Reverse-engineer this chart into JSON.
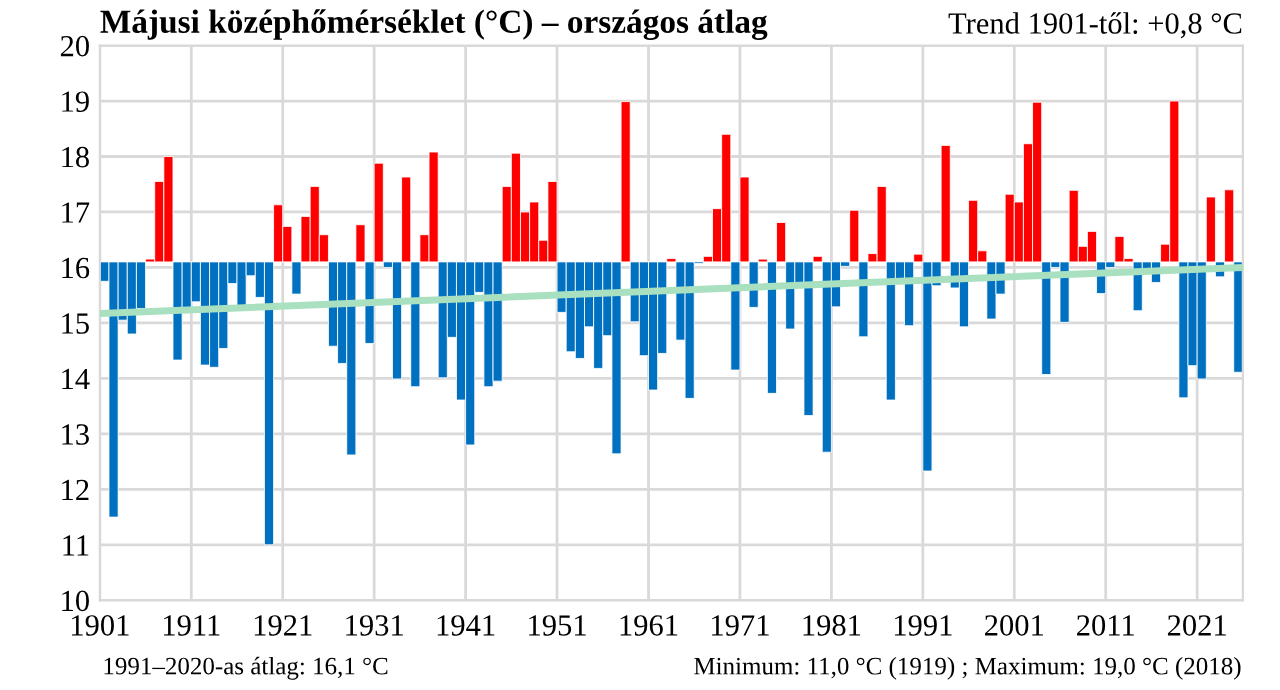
{
  "chart_data": {
    "type": "bar",
    "title": "Májusi középhőmérséklet (°C) – országos átlag",
    "subtitle": "Trend 1901-től: +0,8 °C",
    "annotations": [
      "1991–2020-as átlag: 16,1 °C",
      "Minimum: 11,0 °C (1919) ; Maximum: 19,0 °C (2018)"
    ],
    "x": [
      1901,
      1902,
      1903,
      1904,
      1905,
      1906,
      1907,
      1908,
      1909,
      1910,
      1911,
      1912,
      1913,
      1914,
      1915,
      1916,
      1917,
      1918,
      1919,
      1920,
      1921,
      1922,
      1923,
      1924,
      1925,
      1926,
      1927,
      1928,
      1929,
      1930,
      1931,
      1932,
      1933,
      1934,
      1935,
      1936,
      1937,
      1938,
      1939,
      1940,
      1941,
      1942,
      1943,
      1944,
      1945,
      1946,
      1947,
      1948,
      1949,
      1950,
      1951,
      1952,
      1953,
      1954,
      1955,
      1956,
      1957,
      1958,
      1959,
      1960,
      1961,
      1962,
      1963,
      1964,
      1965,
      1966,
      1967,
      1968,
      1969,
      1970,
      1971,
      1972,
      1973,
      1974,
      1975,
      1976,
      1977,
      1978,
      1979,
      1980,
      1981,
      1982,
      1983,
      1984,
      1985,
      1986,
      1987,
      1988,
      1989,
      1990,
      1991,
      1992,
      1993,
      1994,
      1995,
      1996,
      1997,
      1998,
      1999,
      2000,
      2001,
      2002,
      2003,
      2004,
      2005,
      2006,
      2007,
      2008,
      2009,
      2010,
      2011,
      2012,
      2013,
      2014,
      2015,
      2016,
      2017,
      2018,
      2019,
      2020,
      2021,
      2022,
      2023,
      2024,
      2025
    ],
    "series": [
      {
        "values": [
          -0.35,
          -4.6,
          -1.05,
          -1.3,
          -0.84,
          0.05,
          1.45,
          1.9,
          -1.77,
          -0.85,
          -0.72,
          -1.86,
          -1.9,
          -1.56,
          -0.39,
          -0.79,
          -0.25,
          -0.64,
          -5.1,
          1.03,
          0.64,
          -0.58,
          0.82,
          1.36,
          0.49,
          -1.52,
          -1.83,
          -3.48,
          0.67,
          -1.47,
          1.78,
          -0.1,
          -2.11,
          1.53,
          -2.25,
          0.49,
          1.98,
          -2.09,
          -1.36,
          -2.49,
          -3.3,
          -0.55,
          -2.25,
          -2.15,
          1.36,
          1.96,
          0.9,
          1.08,
          0.39,
          1.45,
          -0.91,
          -1.62,
          -1.74,
          -1.17,
          -1.92,
          -1.33,
          -3.46,
          2.89,
          -1.08,
          -1.69,
          -2.31,
          -1.65,
          0.06,
          -1.41,
          -2.46,
          -0.03,
          0.1,
          0.96,
          2.3,
          -1.95,
          1.53,
          -0.82,
          0.05,
          -2.37,
          0.71,
          -1.21,
          -0.43,
          -2.77,
          0.1,
          -3.43,
          -0.81,
          -0.08,
          0.93,
          -1.35,
          0.15,
          1.36,
          -2.49,
          -0.31,
          -1.15,
          0.14,
          -3.77,
          -0.43,
          2.1,
          -0.47,
          -1.17,
          1.11,
          0.2,
          -1.03,
          -0.58,
          1.22,
          1.08,
          2.13,
          2.88,
          -2.03,
          -0.1,
          -1.09,
          1.29,
          0.28,
          0.55,
          -0.57,
          -0.1,
          0.46,
          0.06,
          -0.88,
          -0.18,
          -0.37,
          0.32,
          2.9,
          -2.45,
          -1.87,
          -2.11,
          1.17,
          -0.27,
          1.3,
          -1.99
        ],
        "base": [
          16.1,
          16.1,
          16.1,
          16.1,
          16.1,
          16.1,
          16.1,
          16.1,
          16.1,
          16.1,
          16.1,
          16.1,
          16.1,
          16.1,
          16.1,
          16.1,
          16.1,
          16.1,
          16.1,
          16.1,
          16.1,
          16.1,
          16.1,
          16.1,
          16.1,
          16.1,
          16.1,
          16.1,
          16.1,
          16.1,
          16.1,
          16.1,
          16.1,
          16.1,
          16.1,
          16.1,
          16.1,
          16.1,
          16.1,
          16.1,
          16.1,
          16.1,
          16.1,
          16.1,
          16.1,
          16.1,
          16.1,
          16.1,
          16.1,
          16.1,
          16.1,
          16.1,
          16.1,
          16.1,
          16.1,
          16.1,
          16.1,
          16.1,
          16.1,
          16.1,
          16.1,
          16.1,
          16.1,
          16.1,
          16.1,
          16.1,
          16.1,
          16.1,
          16.1,
          16.1,
          16.1,
          16.1,
          16.1,
          16.1,
          16.1,
          16.1,
          16.1,
          16.1,
          16.1,
          16.1,
          16.1,
          16.1,
          16.1,
          16.1,
          16.1,
          16.1,
          16.1,
          16.1,
          16.1,
          16.1,
          16.1,
          16.1,
          16.1,
          16.1,
          16.1,
          16.1,
          16.1,
          16.1,
          16.1,
          16.1,
          16.1,
          16.1,
          16.1,
          16.1,
          16.1,
          16.1,
          16.1,
          16.1,
          16.1,
          16.1,
          16.1,
          16.1,
          16.1,
          16.1,
          16.1,
          16.1,
          16.1,
          16.1,
          16.1,
          16.1,
          16.1,
          16.1,
          16.1,
          16.1,
          16.1
        ],
        "colors": [
          "#0070c0",
          "#0070c0",
          "#0070c0",
          "#0070c0",
          "#0070c0",
          "#ff0000",
          "#ff0000",
          "#ff0000",
          "#0070c0",
          "#0070c0",
          "#0070c0",
          "#0070c0",
          "#0070c0",
          "#0070c0",
          "#0070c0",
          "#0070c0",
          "#0070c0",
          "#0070c0",
          "#0070c0",
          "#ff0000",
          "#ff0000",
          "#0070c0",
          "#ff0000",
          "#ff0000",
          "#ff0000",
          "#0070c0",
          "#0070c0",
          "#0070c0",
          "#ff0000",
          "#0070c0",
          "#ff0000",
          "#0070c0",
          "#0070c0",
          "#ff0000",
          "#0070c0",
          "#ff0000",
          "#ff0000",
          "#0070c0",
          "#0070c0",
          "#0070c0",
          "#0070c0",
          "#0070c0",
          "#0070c0",
          "#0070c0",
          "#ff0000",
          "#ff0000",
          "#ff0000",
          "#ff0000",
          "#ff0000",
          "#ff0000",
          "#0070c0",
          "#0070c0",
          "#0070c0",
          "#0070c0",
          "#0070c0",
          "#0070c0",
          "#0070c0",
          "#ff0000",
          "#0070c0",
          "#0070c0",
          "#0070c0",
          "#0070c0",
          "#ff0000",
          "#0070c0",
          "#0070c0",
          "#0070c0",
          "#ff0000",
          "#ff0000",
          "#ff0000",
          "#0070c0",
          "#ff0000",
          "#0070c0",
          "#ff0000",
          "#0070c0",
          "#ff0000",
          "#0070c0",
          "#0070c0",
          "#0070c0",
          "#ff0000",
          "#0070c0",
          "#0070c0",
          "#0070c0",
          "#ff0000",
          "#0070c0",
          "#ff0000",
          "#ff0000",
          "#0070c0",
          "#0070c0",
          "#0070c0",
          "#ff0000",
          "#0070c0",
          "#0070c0",
          "#ff0000",
          "#0070c0",
          "#0070c0",
          "#ff0000",
          "#ff0000",
          "#0070c0",
          "#0070c0",
          "#ff0000",
          "#ff0000",
          "#ff0000",
          "#ff0000",
          "#0070c0",
          "#0070c0",
          "#0070c0",
          "#ff0000",
          "#ff0000",
          "#ff0000",
          "#0070c0",
          "#0070c0",
          "#ff0000",
          "#ff0000",
          "#0070c0",
          "#0070c0",
          "#0070c0",
          "#ff0000",
          "#ff0000",
          "#0070c0",
          "#0070c0",
          "#0070c0",
          "#ff0000",
          "#0070c0",
          "#ff0000",
          "#0070c0"
        ]
      },
      {
        "type": "line",
        "color": "#a8e0c0",
        "x": [
          1901,
          2026
        ],
        "values": [
          15.17,
          16.0
        ]
      }
    ],
    "xlim": [
      1901,
      2026
    ],
    "xticks": [
      1901,
      1911,
      1921,
      1931,
      1941,
      1951,
      1961,
      1971,
      1981,
      1991,
      2001,
      2011,
      2021
    ],
    "ylim": [
      10,
      20
    ],
    "yticks": [
      10,
      11,
      12,
      13,
      14,
      15,
      16,
      17,
      18,
      19,
      20
    ],
    "grid": true,
    "legend": false
  }
}
